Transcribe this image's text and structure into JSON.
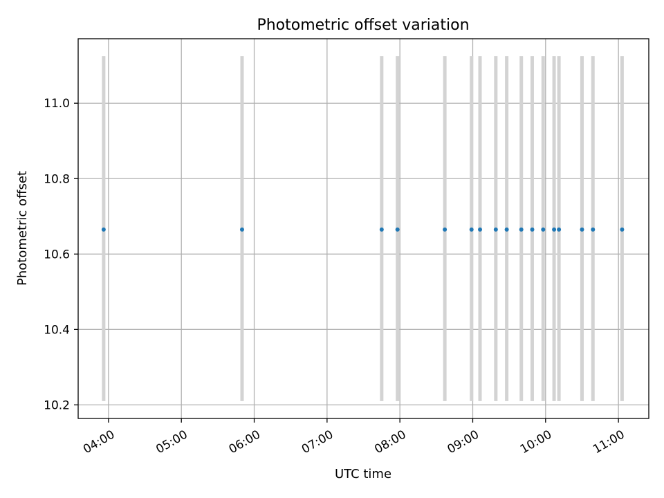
{
  "chart_data": {
    "type": "scatter",
    "title": "Photometric offset variation",
    "xlabel": "UTC time",
    "ylabel": "Photometric offset",
    "grid": true,
    "xlim": [
      "03:35",
      "11:25"
    ],
    "ylim": [
      10.164,
      11.171
    ],
    "x_ticks": [
      "04:00",
      "05:00",
      "06:00",
      "07:00",
      "08:00",
      "09:00",
      "10:00",
      "11:00"
    ],
    "y_ticks": [
      "10.2",
      "10.4",
      "10.6",
      "10.8",
      "11.0"
    ],
    "points": [
      {
        "x": "03:56",
        "y": 10.665,
        "y_low": 10.21,
        "y_high": 11.125
      },
      {
        "x": "05:50",
        "y": 10.665,
        "y_low": 10.21,
        "y_high": 11.125
      },
      {
        "x": "07:45",
        "y": 10.665,
        "y_low": 10.21,
        "y_high": 11.125
      },
      {
        "x": "07:58",
        "y": 10.665,
        "y_low": 10.21,
        "y_high": 11.125
      },
      {
        "x": "08:37",
        "y": 10.665,
        "y_low": 10.21,
        "y_high": 11.125
      },
      {
        "x": "08:59",
        "y": 10.665,
        "y_low": 10.21,
        "y_high": 11.125
      },
      {
        "x": "09:06",
        "y": 10.665,
        "y_low": 10.21,
        "y_high": 11.125
      },
      {
        "x": "09:19",
        "y": 10.665,
        "y_low": 10.21,
        "y_high": 11.125
      },
      {
        "x": "09:28",
        "y": 10.665,
        "y_low": 10.21,
        "y_high": 11.125
      },
      {
        "x": "09:40",
        "y": 10.665,
        "y_low": 10.21,
        "y_high": 11.125
      },
      {
        "x": "09:49",
        "y": 10.665,
        "y_low": 10.21,
        "y_high": 11.125
      },
      {
        "x": "09:58",
        "y": 10.665,
        "y_low": 10.21,
        "y_high": 11.125
      },
      {
        "x": "10:07",
        "y": 10.665,
        "y_low": 10.21,
        "y_high": 11.125
      },
      {
        "x": "10:11",
        "y": 10.665,
        "y_low": 10.21,
        "y_high": 11.125
      },
      {
        "x": "10:30",
        "y": 10.665,
        "y_low": 10.21,
        "y_high": 11.125
      },
      {
        "x": "10:39",
        "y": 10.665,
        "y_low": 10.21,
        "y_high": 11.125
      },
      {
        "x": "11:03",
        "y": 10.665,
        "y_low": 10.21,
        "y_high": 11.125
      }
    ],
    "colors": {
      "points": "#1f77b4",
      "error_bars": "#d3d3d3",
      "grid": "#b0b0b0"
    }
  }
}
